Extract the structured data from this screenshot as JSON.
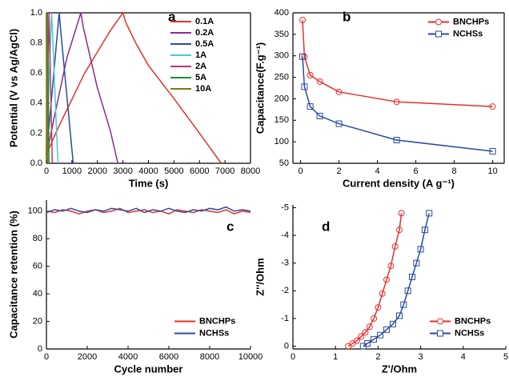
{
  "chart_data": [
    {
      "type": "line",
      "label": "a",
      "xlabel": "Time (s)",
      "ylabel": "Potential (V vs Ag/AgCl)",
      "xlim": [
        0,
        8000
      ],
      "xticks": [
        0,
        1000,
        2000,
        3000,
        4000,
        5000,
        6000,
        7000,
        8000
      ],
      "ylim": [
        0,
        1.0
      ],
      "yticks": [
        {
          "value": 0,
          "label": "0.0"
        },
        0.2,
        0.4,
        0.6,
        0.8,
        {
          "value": 1,
          "label": "1.0"
        }
      ],
      "legend": "upper right",
      "series": [
        {
          "name": "0.1A",
          "color": "#e8302a",
          "x": [
            0,
            500,
            1500,
            2500,
            3000,
            3100,
            3500,
            4000,
            5000,
            6000,
            6850
          ],
          "values": [
            0.06,
            0.25,
            0.6,
            0.88,
            1.0,
            0.94,
            0.8,
            0.65,
            0.43,
            0.2,
            0
          ]
        },
        {
          "name": "0.2A",
          "color": "#8b2a8f",
          "x": [
            0,
            300,
            800,
            1350,
            1450,
            2000,
            2500,
            2800
          ],
          "values": [
            0.05,
            0.3,
            0.7,
            1.0,
            0.9,
            0.5,
            0.22,
            0
          ]
        },
        {
          "name": "0.5A",
          "color": "#2b4aa0",
          "x": [
            0,
            500,
            550,
            800,
            1050
          ],
          "values": [
            0.05,
            1.0,
            0.9,
            0.45,
            0
          ]
        },
        {
          "name": "1A",
          "color": "#4cc8d0",
          "x": [
            0,
            200,
            230,
            450
          ],
          "values": [
            0.05,
            1.0,
            0.9,
            0
          ]
        },
        {
          "name": "2A",
          "color": "#c4307a",
          "x": [
            0,
            100,
            115,
            230
          ],
          "values": [
            0.05,
            1.0,
            0.9,
            0
          ]
        },
        {
          "name": "5A",
          "color": "#1a8c3a",
          "x": [
            0,
            40,
            50,
            100
          ],
          "values": [
            0.03,
            1.0,
            0.9,
            0
          ]
        },
        {
          "name": "10A",
          "color": "#7a7a10",
          "x": [
            0,
            20,
            25,
            50
          ],
          "values": [
            0.02,
            1.0,
            0.9,
            0
          ]
        }
      ]
    },
    {
      "type": "line",
      "label": "b",
      "xlabel": "Current density (A g⁻¹)",
      "ylabel": "Capacitance(F.g⁻¹)",
      "xlim": [
        -0.4,
        10.6
      ],
      "xticks": [
        0,
        2,
        4,
        6,
        8,
        10
      ],
      "ylim": [
        50,
        400
      ],
      "yticks": [
        50,
        100,
        150,
        200,
        250,
        300,
        350,
        400
      ],
      "legend": "upper right",
      "series": [
        {
          "name": "BNCHPs",
          "color": "#e8302a",
          "marker": "circle",
          "x": [
            0.1,
            0.2,
            0.5,
            1,
            2,
            5,
            10
          ],
          "values": [
            383,
            298,
            255,
            240,
            216,
            193,
            182
          ]
        },
        {
          "name": "NCHSs",
          "color": "#2b4aa0",
          "marker": "square",
          "x": [
            0.1,
            0.2,
            0.5,
            1,
            2,
            5,
            10
          ],
          "values": [
            298,
            228,
            182,
            160,
            142,
            104,
            78
          ]
        }
      ]
    },
    {
      "type": "line",
      "label": "c",
      "xlabel": "Cycle number",
      "ylabel": "Capacitance retention (%)",
      "xlim": [
        0,
        10000
      ],
      "xticks": [
        0,
        2000,
        4000,
        6000,
        8000,
        10000
      ],
      "ylim": [
        0,
        108
      ],
      "yticks": [
        0,
        20,
        40,
        60,
        80,
        100
      ],
      "legend": "lower right",
      "x": [
        0,
        400,
        800,
        1200,
        1600,
        2000,
        2400,
        2800,
        3200,
        3600,
        4000,
        4400,
        4800,
        5200,
        5600,
        6000,
        6400,
        6800,
        7200,
        7600,
        8000,
        8400,
        8800,
        9200,
        9600,
        10000
      ],
      "series": [
        {
          "name": "BNCHPs",
          "color": "#e8302a",
          "values": [
            100,
            99,
            101,
            100,
            98,
            100,
            101,
            99,
            100,
            102,
            99,
            100,
            101,
            99,
            100,
            98,
            101,
            100,
            99,
            101,
            100,
            99,
            101,
            98,
            100,
            99
          ]
        },
        {
          "name": "NCHSs",
          "color": "#2b4aa0",
          "values": [
            99,
            101,
            100,
            102,
            100,
            99,
            101,
            100,
            102,
            101,
            100,
            102,
            99,
            101,
            100,
            102,
            100,
            99,
            101,
            100,
            102,
            101,
            103,
            100,
            101,
            100
          ]
        }
      ]
    },
    {
      "type": "line",
      "label": "d",
      "xlabel": "Z'/Ohm",
      "ylabel": "Z''/Ohm",
      "xlim": [
        0,
        5
      ],
      "xticks": [
        0,
        1,
        2,
        3,
        4,
        5
      ],
      "ylim": [
        0.1,
        -5.1
      ],
      "yticks": [
        0,
        -1,
        -2,
        -3,
        -4,
        -5
      ],
      "legend": "lower right",
      "series": [
        {
          "name": "BNCHPs",
          "color": "#e8302a",
          "marker": "circle",
          "x": [
            1.3,
            1.4,
            1.5,
            1.6,
            1.7,
            1.8,
            1.9,
            2.0,
            2.1,
            2.2,
            2.3,
            2.4,
            2.5,
            2.55
          ],
          "values": [
            0,
            -0.1,
            -0.2,
            -0.35,
            -0.5,
            -0.7,
            -1.0,
            -1.4,
            -1.9,
            -2.4,
            -2.9,
            -3.6,
            -4.2,
            -4.8
          ]
        },
        {
          "name": "NCHSs",
          "color": "#2b4aa0",
          "marker": "square",
          "x": [
            1.65,
            1.75,
            1.9,
            2.05,
            2.2,
            2.35,
            2.5,
            2.6,
            2.7,
            2.8,
            2.9,
            3.0,
            3.1,
            3.2
          ],
          "values": [
            0,
            -0.1,
            -0.25,
            -0.4,
            -0.6,
            -0.8,
            -1.1,
            -1.5,
            -2.0,
            -2.5,
            -3.0,
            -3.5,
            -4.2,
            -4.8
          ]
        }
      ]
    }
  ]
}
